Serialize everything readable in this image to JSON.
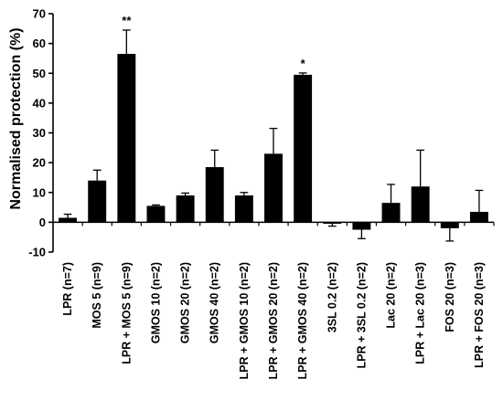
{
  "chart_data": {
    "type": "bar",
    "title": "",
    "xlabel": "",
    "ylabel": "Normalised protection (%)",
    "ylim": [
      -10,
      70
    ],
    "yticks": [
      -10,
      0,
      10,
      20,
      30,
      40,
      50,
      60,
      70
    ],
    "grid": false,
    "legend": "none",
    "bar_color": "#000000",
    "categories": [
      "LPR (n=7)",
      "MOS 5 (n=9)",
      "LPR + MOS 5 (n=9)",
      "GMOS 10 (n=2)",
      "GMOS 20 (n=2)",
      "GMOS 40 (n=2)",
      "LPR + GMOS 10 (n=2)",
      "LPR + GMOS 20 (n=2)",
      "LPR + GMOS 40 (n=2)",
      "3SL 0.2 (n=2)",
      "LPR + 3SL 0.2 (n=2)",
      "Lac 20 (n=2)",
      "LPR + Lac 20 (n=3)",
      "FOS 20 (n=3)",
      "LPR + FOS 20 (n=3)"
    ],
    "values": [
      1.5,
      14.0,
      56.5,
      5.5,
      9.0,
      18.5,
      9.0,
      23.0,
      49.5,
      -0.5,
      -2.5,
      6.5,
      12.0,
      -2.0,
      3.5
    ],
    "errors": [
      1.2,
      3.5,
      8.0,
      0.3,
      0.8,
      5.7,
      1.0,
      8.5,
      0.6,
      0.8,
      3.0,
      6.2,
      12.2,
      4.3,
      7.2
    ],
    "annotations": [
      "",
      "",
      "**",
      "",
      "",
      "",
      "",
      "",
      "*",
      "",
      "",
      "",
      "",
      "",
      ""
    ]
  }
}
